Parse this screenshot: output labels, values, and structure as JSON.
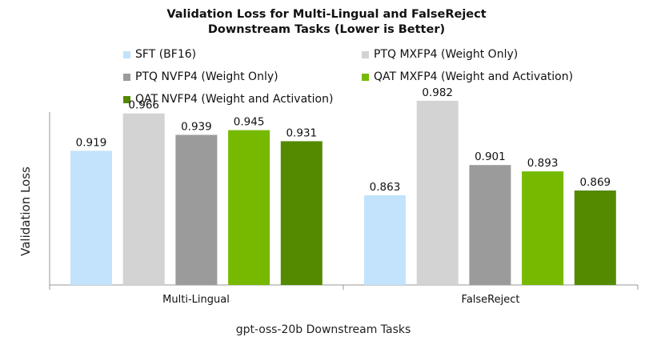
{
  "chart_data": {
    "type": "bar",
    "title": "Validation Loss for Multi-Lingual and FalseReject",
    "subtitle": "Downstream Tasks (Lower is Better)",
    "xlabel": "gpt-oss-20b Downstream Tasks",
    "ylabel": "Validation Loss",
    "categories": [
      "Multi-Lingual",
      "FalseReject"
    ],
    "ylim": [
      0.75,
      1.0
    ],
    "grid": false,
    "legend_position": "top",
    "series": [
      {
        "name": "SFT (BF16)",
        "color": "#c2e3fb",
        "values": [
          0.919,
          0.863
        ],
        "labels": [
          "0.919",
          "0.863"
        ]
      },
      {
        "name": "PTQ MXFP4 (Weight Only)",
        "color": "#d3d3d3",
        "values": [
          0.966,
          0.982
        ],
        "labels": [
          "0.966",
          "0.982"
        ]
      },
      {
        "name": "PTQ NVFP4 (Weight Only)",
        "color": "#9b9b9b",
        "values": [
          0.939,
          0.901
        ],
        "labels": [
          "0.939",
          "0.901"
        ]
      },
      {
        "name": "QAT MXFP4 (Weight and Activation)",
        "color": "#76b900",
        "values": [
          0.945,
          0.893
        ],
        "labels": [
          "0.945",
          "0.893"
        ]
      },
      {
        "name": "QAT NVFP4 (Weight and Activation)",
        "color": "#538a00",
        "values": [
          0.931,
          0.869
        ],
        "labels": [
          "0.931",
          "0.869"
        ]
      }
    ]
  }
}
